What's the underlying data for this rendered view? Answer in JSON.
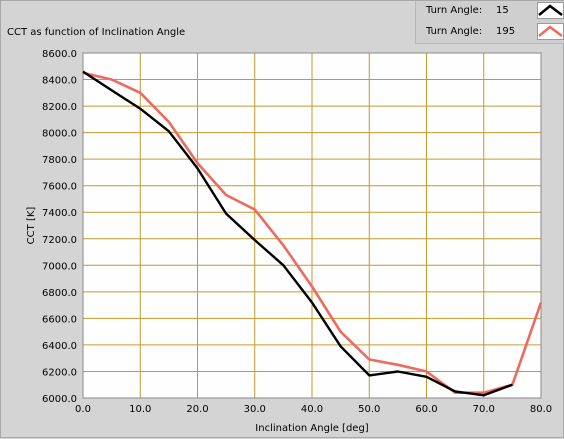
{
  "chart_data": {
    "type": "line",
    "title": "CCT as function of Inclination Angle",
    "xlabel": "Inclination Angle [deg]",
    "ylabel": "CCT [K]",
    "xlim": [
      0,
      80
    ],
    "ylim": [
      6000,
      8600
    ],
    "x_ticks": [
      "0.0",
      "10.0",
      "20.0",
      "30.0",
      "40.0",
      "50.0",
      "60.0",
      "70.0",
      "80.0"
    ],
    "y_ticks": [
      "6000.0",
      "6200.0",
      "6400.0",
      "6600.0",
      "6800.0",
      "7000.0",
      "7200.0",
      "7400.0",
      "7600.0",
      "7800.0",
      "8000.0",
      "8200.0",
      "8400.0",
      "8600.0"
    ],
    "grid": true,
    "legend_position": "top-right",
    "series": [
      {
        "label": "Turn Angle:",
        "value": "15",
        "color": "#000000",
        "points": [
          [
            0,
            8460
          ],
          [
            5,
            8320
          ],
          [
            10,
            8180
          ],
          [
            15,
            8010
          ],
          [
            20,
            7730
          ],
          [
            25,
            7390
          ],
          [
            30,
            7190
          ],
          [
            35,
            7000
          ],
          [
            40,
            6720
          ],
          [
            45,
            6390
          ],
          [
            50,
            6170
          ],
          [
            55,
            6200
          ],
          [
            60,
            6160
          ],
          [
            65,
            6050
          ],
          [
            70,
            6020
          ],
          [
            75,
            6100
          ]
        ]
      },
      {
        "label": "Turn Angle:",
        "value": "195",
        "color": "#ee6a5e",
        "points": [
          [
            0,
            8450
          ],
          [
            5,
            8400
          ],
          [
            10,
            8300
          ],
          [
            15,
            8080
          ],
          [
            20,
            7770
          ],
          [
            25,
            7530
          ],
          [
            30,
            7420
          ],
          [
            35,
            7150
          ],
          [
            40,
            6840
          ],
          [
            45,
            6500
          ],
          [
            50,
            6290
          ],
          [
            55,
            6250
          ],
          [
            60,
            6200
          ],
          [
            65,
            6040
          ],
          [
            70,
            6040
          ],
          [
            75,
            6100
          ],
          [
            80,
            6720
          ]
        ]
      }
    ]
  },
  "colors": {
    "plot_background": "#fefefe",
    "grid": "#c49a2a",
    "frame_background": "#d4d4d4"
  }
}
